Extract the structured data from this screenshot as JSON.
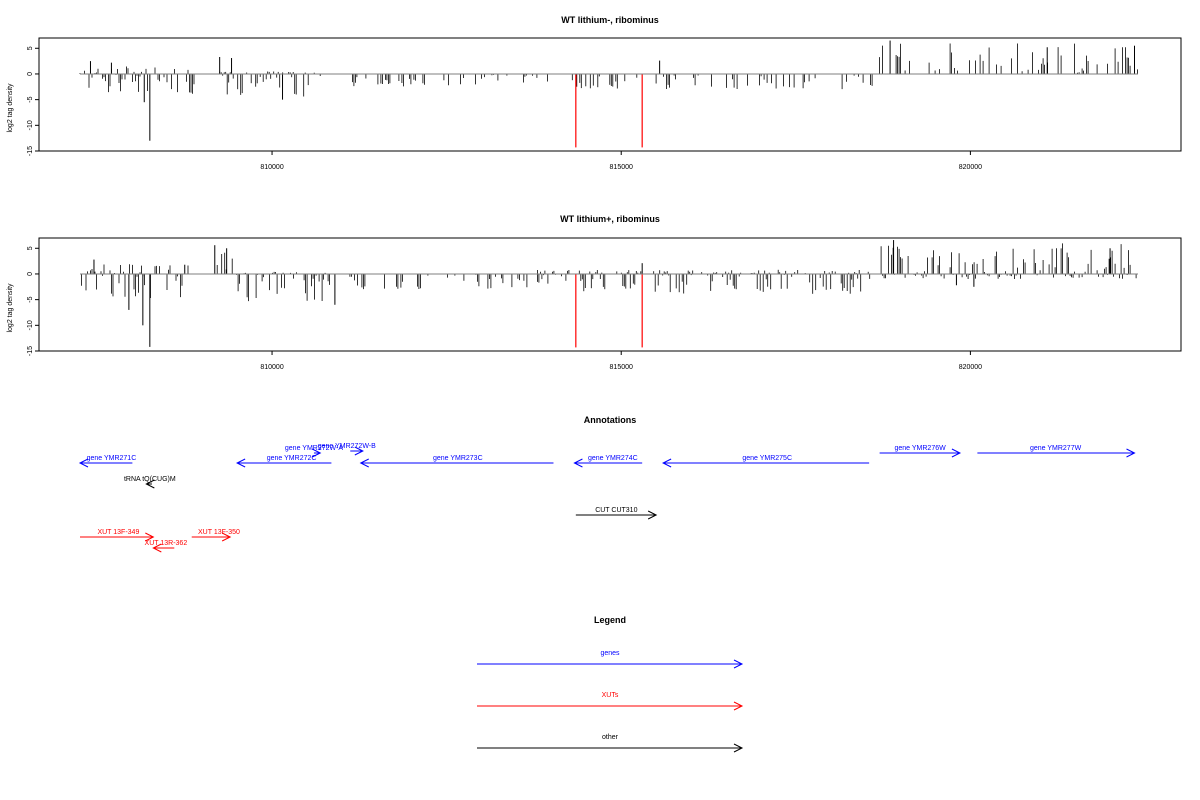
{
  "chart_data": [
    {
      "type": "bar",
      "title": "WT lithium-, ribominus",
      "xlabel": "",
      "ylabel": "log2 tag density",
      "xlim": [
        807000,
        823000
      ],
      "ylim": [
        -15,
        7
      ],
      "xticks": [
        810000,
        815000,
        820000
      ],
      "yticks": [
        5,
        0,
        -5,
        -10,
        -15
      ],
      "highlight_color": "#ff0000",
      "bar_color": "#000000",
      "segments": [
        {
          "from": 807250,
          "to": 808900,
          "lo": -4,
          "hi": 1.5
        },
        {
          "from": 809250,
          "to": 810700,
          "lo": -4.5,
          "hi": 0.5
        },
        {
          "from": 811000,
          "to": 814000,
          "lo": -2.5,
          "hi": 0
        },
        {
          "from": 814300,
          "to": 815300,
          "lo": -3,
          "hi": 0
        },
        {
          "from": 815500,
          "to": 818600,
          "lo": -3,
          "hi": 0
        },
        {
          "from": 818700,
          "to": 822400,
          "lo": 0,
          "hi": 6
        }
      ],
      "peaks": [
        {
          "x": 807400,
          "y": 2.5
        },
        {
          "x": 807700,
          "y": 2.2
        },
        {
          "x": 808250,
          "y": -13
        },
        {
          "x": 808170,
          "y": -5.5
        },
        {
          "x": 809250,
          "y": 3.3
        },
        {
          "x": 809420,
          "y": 3.1
        },
        {
          "x": 810150,
          "y": -5
        },
        {
          "x": 815550,
          "y": 2.6
        },
        {
          "x": 818850,
          "y": 6.5
        },
        {
          "x": 821100,
          "y": 5.2
        },
        {
          "x": 822350,
          "y": 5.5
        }
      ],
      "highlights": [
        {
          "x": 814350,
          "y": -14.3
        },
        {
          "x": 815300,
          "y": -14.3
        }
      ]
    },
    {
      "type": "bar",
      "title": "WT lithium+, ribominus",
      "xlabel": "",
      "ylabel": "log2 tag density",
      "xlim": [
        807000,
        823000
      ],
      "ylim": [
        -15,
        7
      ],
      "xticks": [
        810000,
        815000,
        820000
      ],
      "yticks": [
        5,
        0,
        -5,
        -10,
        -15
      ],
      "highlight_color": "#ff0000",
      "bar_color": "#000000",
      "segments": [
        {
          "from": 807250,
          "to": 808800,
          "lo": -5,
          "hi": 2
        },
        {
          "from": 809150,
          "to": 809450,
          "lo": 0,
          "hi": 4.5
        },
        {
          "from": 809450,
          "to": 810900,
          "lo": -5.5,
          "hi": 0.5
        },
        {
          "from": 810900,
          "to": 813800,
          "lo": -3,
          "hi": 0
        },
        {
          "from": 813800,
          "to": 814300,
          "lo": -2,
          "hi": 0.8
        },
        {
          "from": 814400,
          "to": 815300,
          "lo": -3.5,
          "hi": 0.8
        },
        {
          "from": 815400,
          "to": 818600,
          "lo": -4,
          "hi": 0.8
        },
        {
          "from": 818700,
          "to": 822400,
          "lo": -1,
          "hi": 6
        }
      ],
      "peaks": [
        {
          "x": 807450,
          "y": 2.8
        },
        {
          "x": 807950,
          "y": -7
        },
        {
          "x": 808250,
          "y": -14.2
        },
        {
          "x": 808150,
          "y": -10
        },
        {
          "x": 808750,
          "y": 1.8
        },
        {
          "x": 809180,
          "y": 5.6
        },
        {
          "x": 809350,
          "y": 5
        },
        {
          "x": 810900,
          "y": -6
        },
        {
          "x": 815300,
          "y": 2.1
        },
        {
          "x": 818900,
          "y": 6.6
        },
        {
          "x": 819800,
          "y": -2.2
        },
        {
          "x": 820050,
          "y": -2.5
        },
        {
          "x": 822000,
          "y": 5
        }
      ],
      "highlights": [
        {
          "x": 814350,
          "y": -14.3
        },
        {
          "x": 815300,
          "y": -14.3
        }
      ]
    }
  ],
  "annotations": {
    "title": "Annotations",
    "features": [
      {
        "label": "gene YMR271C",
        "start": 807250,
        "end": 808000,
        "strand": "-",
        "kind": "gene",
        "row": 3,
        "tx": 807700
      },
      {
        "label": "gene YMR272C",
        "start": 809500,
        "end": 810850,
        "strand": "-",
        "kind": "gene",
        "row": 3,
        "tx": 810280
      },
      {
        "label": "gene YMR272W-A",
        "start": 810600,
        "end": 810690,
        "strand": "+",
        "kind": "gene",
        "row": 2,
        "tx": 810600
      },
      {
        "label": "gene YMR272W-B",
        "start": 811120,
        "end": 811300,
        "strand": "+",
        "kind": "gene",
        "row": 1,
        "tx": 811070
      },
      {
        "label": "gene YMR273C",
        "start": 811270,
        "end": 814030,
        "strand": "-",
        "kind": "gene",
        "row": 3,
        "tx": 812660
      },
      {
        "label": "gene YMR274C",
        "start": 814330,
        "end": 815300,
        "strand": "-",
        "kind": "gene",
        "row": 3,
        "tx": 814880
      },
      {
        "label": "gene YMR275C",
        "start": 815600,
        "end": 818550,
        "strand": "-",
        "kind": "gene",
        "row": 3,
        "tx": 817090
      },
      {
        "label": "gene YMR276W",
        "start": 818700,
        "end": 819850,
        "strand": "+",
        "kind": "gene",
        "row": 0,
        "tx": 819280
      },
      {
        "label": "gene YMR277W",
        "start": 820100,
        "end": 822350,
        "strand": "+",
        "kind": "gene",
        "row": 0,
        "tx": 821220
      },
      {
        "label": "tRNA tQ(CUG)M",
        "start": 808200,
        "end": 808280,
        "strand": "-",
        "kind": "other",
        "row": 4,
        "tx": 808250
      },
      {
        "label": "CUT CUT310",
        "start": 814350,
        "end": 815500,
        "strand": "+",
        "kind": "other",
        "row": 5,
        "tx": 814930
      },
      {
        "label": "XUT 13F-349",
        "start": 807250,
        "end": 808300,
        "strand": "+",
        "kind": "xut",
        "row": 6,
        "tx": 807800
      },
      {
        "label": "XUT 13F-350",
        "start": 808850,
        "end": 809400,
        "strand": "+",
        "kind": "xut",
        "row": 6,
        "tx": 809240
      },
      {
        "label": "XUT 13R-362",
        "start": 808300,
        "end": 808600,
        "strand": "-",
        "kind": "xut",
        "row": 7,
        "tx": 808480
      }
    ]
  },
  "legend": {
    "title": "Legend",
    "items": [
      {
        "label": "genes",
        "color": "#0000ff"
      },
      {
        "label": "XUTs",
        "color": "#ff0000"
      },
      {
        "label": "other",
        "color": "#000000"
      }
    ]
  },
  "colors": {
    "gene": "#0000ff",
    "xut": "#ff0000",
    "other": "#000000",
    "axis": "#000000",
    "zero_line": "#7f7f7f"
  }
}
